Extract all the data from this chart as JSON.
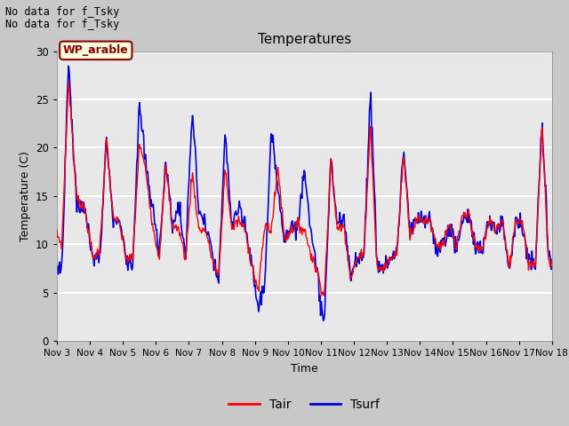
{
  "title": "Temperatures",
  "xlabel": "Time",
  "ylabel": "Temperature (C)",
  "ylim": [
    0,
    30
  ],
  "yticks": [
    0,
    5,
    10,
    15,
    20,
    25,
    30
  ],
  "annotation1": "No data for f_Tsky",
  "annotation2": "No data for f_Tsky",
  "box_label": "WP_arable",
  "legend_tair": "Tair",
  "legend_tsurf": "Tsurf",
  "tair_color": "#ff0000",
  "tsurf_color": "#0000dd",
  "fig_bg_color": "#c8c8c8",
  "plot_bg_color": "#e8e8e8",
  "xtick_labels": [
    "Nov 3",
    "Nov 4",
    "Nov 5",
    "Nov 6",
    "Nov 7",
    "Nov 8",
    "Nov 9",
    "Nov 10",
    "Nov 11",
    "Nov 12",
    "Nov 13",
    "Nov 14",
    "Nov 15",
    "Nov 16",
    "Nov 17",
    "Nov 18"
  ],
  "tair_keyframes_t": [
    0.0,
    0.15,
    0.35,
    0.6,
    0.85,
    1.1,
    1.3,
    1.5,
    1.7,
    1.9,
    2.1,
    2.3,
    2.5,
    2.7,
    2.9,
    3.1,
    3.3,
    3.5,
    3.7,
    3.9,
    4.1,
    4.3,
    4.5,
    4.7,
    4.9,
    5.1,
    5.3,
    5.5,
    5.7,
    5.9,
    6.1,
    6.3,
    6.5,
    6.7,
    6.9,
    7.1,
    7.3,
    7.5,
    7.7,
    7.9,
    8.1,
    8.3,
    8.5,
    8.7,
    8.9,
    9.1,
    9.3,
    9.5,
    9.7,
    9.9,
    10.1,
    10.3,
    10.5,
    10.7,
    10.9,
    11.1,
    11.3,
    11.5,
    11.7,
    11.9,
    12.1,
    12.3,
    12.5,
    12.7,
    12.9,
    13.1,
    13.3,
    13.5,
    13.7,
    13.9,
    14.1,
    14.3,
    14.5,
    14.7,
    14.9,
    15.0
  ],
  "tair_keyframes_v": [
    11.0,
    10.0,
    27.0,
    15.0,
    13.5,
    8.5,
    9.5,
    21.0,
    13.0,
    12.0,
    8.5,
    8.5,
    20.5,
    17.5,
    12.0,
    8.5,
    18.0,
    12.0,
    11.5,
    8.5,
    17.5,
    11.5,
    11.5,
    8.5,
    6.5,
    18.0,
    11.5,
    12.5,
    11.5,
    8.0,
    5.0,
    12.0,
    11.5,
    18.0,
    10.5,
    11.5,
    12.0,
    11.5,
    9.0,
    7.0,
    4.5,
    18.5,
    11.5,
    12.0,
    6.5,
    8.5,
    9.0,
    22.5,
    7.5,
    7.5,
    8.5,
    9.0,
    19.5,
    11.0,
    12.5,
    12.5,
    12.5,
    10.0,
    10.0,
    12.0,
    9.5,
    13.0,
    13.0,
    9.5,
    9.5,
    12.5,
    11.5,
    12.5,
    7.5,
    12.5,
    12.5,
    8.0,
    8.0,
    22.5,
    8.0,
    8.0
  ],
  "tsurf_keyframes_v": [
    8.0,
    7.5,
    29.0,
    14.0,
    13.5,
    8.5,
    8.5,
    21.0,
    12.5,
    12.5,
    8.5,
    8.0,
    24.5,
    18.0,
    13.5,
    9.5,
    18.5,
    12.0,
    14.0,
    8.5,
    24.0,
    13.5,
    12.0,
    9.0,
    6.0,
    21.5,
    12.0,
    13.5,
    12.0,
    8.0,
    3.5,
    6.0,
    21.5,
    16.0,
    10.5,
    12.0,
    11.5,
    18.5,
    11.0,
    6.5,
    1.5,
    19.0,
    12.0,
    12.5,
    6.5,
    9.0,
    8.5,
    26.0,
    8.0,
    7.5,
    8.5,
    9.0,
    20.0,
    11.0,
    12.5,
    12.5,
    12.5,
    9.5,
    10.0,
    12.0,
    9.5,
    12.5,
    13.0,
    9.5,
    9.5,
    12.5,
    11.5,
    12.5,
    7.5,
    12.5,
    12.0,
    8.0,
    8.0,
    22.5,
    8.5,
    8.0
  ]
}
